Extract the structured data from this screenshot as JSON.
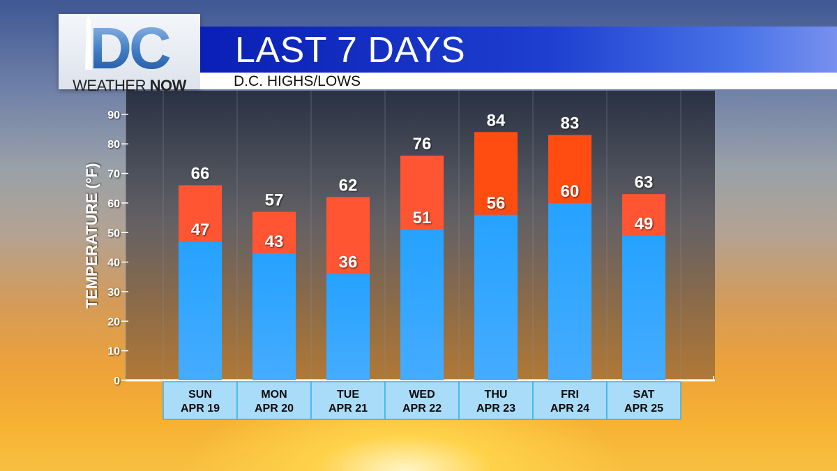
{
  "logo": {
    "letters": "DC",
    "line1": "WEATHER",
    "line2": "NOW"
  },
  "header": {
    "title": "LAST 7 DAYS",
    "subtitle": "D.C. HIGHS/LOWS"
  },
  "colors": {
    "high": "#ff5533",
    "high_hot": "#ff4d12",
    "low": "#2aa6ff",
    "date_box": "#a9dcf8",
    "date_border": "#3bb0e3"
  },
  "chart_data": {
    "type": "bar",
    "stacked_range": true,
    "title": "LAST 7 DAYS",
    "subtitle": "D.C. HIGHS/LOWS",
    "ylabel": "TEMPERATURE (°F)",
    "xlabel": "",
    "ylim": [
      0,
      95
    ],
    "yticks": [
      0,
      10,
      20,
      30,
      40,
      50,
      60,
      70,
      80,
      90
    ],
    "categories": [
      [
        "SUN",
        "APR 19"
      ],
      [
        "MON",
        "APR 20"
      ],
      [
        "TUE",
        "APR 21"
      ],
      [
        "WED",
        "APR 22"
      ],
      [
        "THU",
        "APR 23"
      ],
      [
        "FRI",
        "APR 24"
      ],
      [
        "SAT",
        "APR 25"
      ]
    ],
    "series": [
      {
        "name": "High",
        "values": [
          66,
          57,
          62,
          76,
          84,
          83,
          63
        ]
      },
      {
        "name": "Low",
        "values": [
          47,
          43,
          36,
          51,
          56,
          60,
          49
        ]
      }
    ]
  }
}
